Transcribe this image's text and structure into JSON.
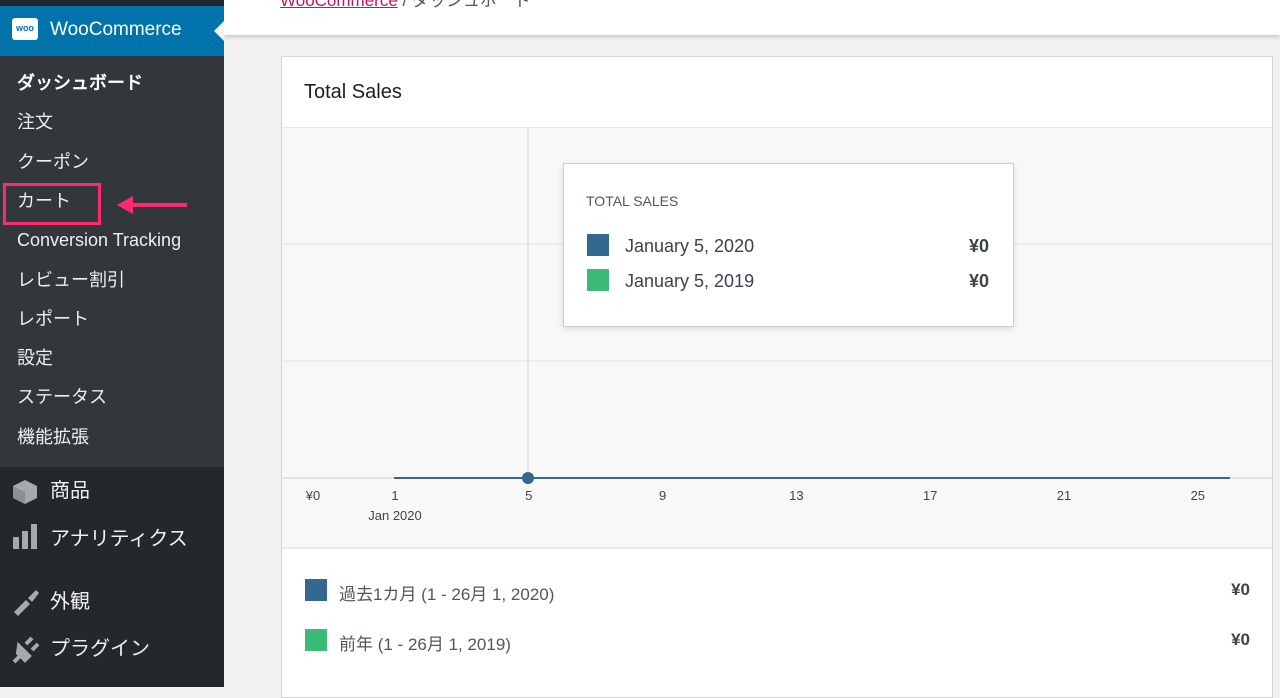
{
  "breadcrumb": {
    "link": "WooCommerce",
    "current": "/ ダッシュボード"
  },
  "sidebar": {
    "logo": "woo",
    "menu_head": "WooCommerce",
    "submenu": [
      "ダッシュボード",
      "注文",
      "クーポン",
      "カート",
      "Conversion Tracking",
      "レビュー割引",
      "レポート",
      "設定",
      "ステータス",
      "機能拡張"
    ],
    "menu": [
      "商品",
      "アナリティクス",
      "外観",
      "プラグイン"
    ]
  },
  "card": {
    "title": "Total Sales",
    "x_labels": [
      "¥0",
      "1",
      "5",
      "9",
      "13",
      "17",
      "21",
      "25"
    ],
    "x_sub_label": "Jan 2020",
    "tooltip": {
      "title": "TOTAL SALES",
      "rows": [
        {
          "label": "January 5, 2020",
          "value": "¥0"
        },
        {
          "label": "January 5, 2019",
          "value": "¥0"
        }
      ]
    },
    "legend": [
      {
        "label": "過去1カ月 (1 - 26月 1, 2020)",
        "value": "¥0"
      },
      {
        "label": "前年 (1 - 26月 1, 2019)",
        "value": "¥0"
      }
    ]
  }
}
